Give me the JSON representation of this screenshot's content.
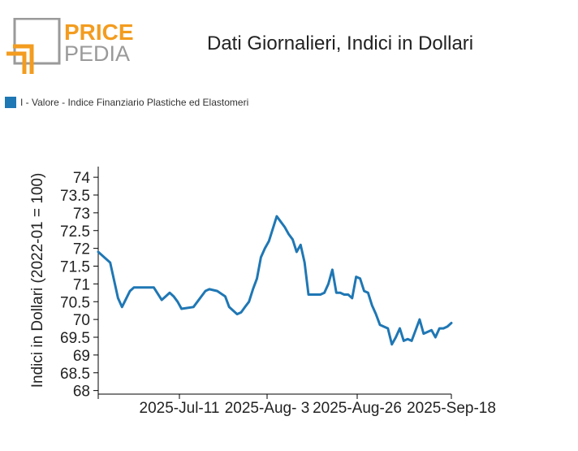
{
  "logo": {
    "word1": "PRICE",
    "word2": "PEDIA"
  },
  "colors": {
    "line": "#1f77b4",
    "orange": "#f39c1f",
    "gray": "#9a9a9a"
  },
  "chart_data": {
    "type": "line",
    "title": "Dati Giornalieri, Indici in Dollari",
    "ylabel": "Indici in Dollari (2022-01 = 100)",
    "xlabel": "",
    "ylim": [
      67.9,
      74.3
    ],
    "yticks": [
      68,
      68.5,
      69,
      69.5,
      70,
      70.5,
      71,
      71.5,
      72,
      72.5,
      73,
      73.5,
      74
    ],
    "xtick_labels": [
      "2025-Jul-11",
      "2025-Aug- 3",
      "2025-Aug-26",
      "2025-Sep-18"
    ],
    "grid": false,
    "legend_position": "top-left",
    "series": [
      {
        "name": "I - Valore - Indice Finanziario Plastiche ed Elastomeri",
        "x": [
          "2025-06-22",
          "2025-06-25",
          "2025-06-27",
          "2025-06-28",
          "2025-06-30",
          "2025-07-01",
          "2025-07-04",
          "2025-07-06",
          "2025-07-08",
          "2025-07-09",
          "2025-07-10",
          "2025-07-11",
          "2025-07-12",
          "2025-07-13",
          "2025-07-16",
          "2025-07-19",
          "2025-07-20",
          "2025-07-22",
          "2025-07-24",
          "2025-07-25",
          "2025-07-27",
          "2025-07-28",
          "2025-07-29",
          "2025-07-30",
          "2025-07-31",
          "2025-08-01",
          "2025-08-02",
          "2025-08-03",
          "2025-08-04",
          "2025-08-06",
          "2025-08-07",
          "2025-08-08",
          "2025-08-09",
          "2025-08-10",
          "2025-08-11",
          "2025-08-12",
          "2025-08-13",
          "2025-08-14",
          "2025-08-15",
          "2025-08-17",
          "2025-08-18",
          "2025-08-19",
          "2025-08-20",
          "2025-08-21",
          "2025-08-22",
          "2025-08-23",
          "2025-08-24",
          "2025-08-25",
          "2025-08-26",
          "2025-08-27",
          "2025-08-28",
          "2025-08-29",
          "2025-08-30",
          "2025-08-31",
          "2025-09-01",
          "2025-09-03",
          "2025-09-04",
          "2025-09-05",
          "2025-09-06",
          "2025-09-07",
          "2025-09-08",
          "2025-09-09",
          "2025-09-11",
          "2025-09-12",
          "2025-09-14",
          "2025-09-15",
          "2025-09-16",
          "2025-09-17",
          "2025-09-18",
          "2025-09-19"
        ],
        "y": [
          71.9,
          71.6,
          70.6,
          70.35,
          70.8,
          70.9,
          70.9,
          70.9,
          70.55,
          70.65,
          70.75,
          70.65,
          70.5,
          70.3,
          70.35,
          70.8,
          70.85,
          70.8,
          70.65,
          70.35,
          70.15,
          70.2,
          70.35,
          70.5,
          70.85,
          71.15,
          71.75,
          72.0,
          72.2,
          72.9,
          72.75,
          72.6,
          72.4,
          72.25,
          71.9,
          72.1,
          71.6,
          70.7,
          70.7,
          70.7,
          70.75,
          71.0,
          71.4,
          70.75,
          70.75,
          70.7,
          70.7,
          70.6,
          71.2,
          71.15,
          70.8,
          70.75,
          70.4,
          70.15,
          69.85,
          69.75,
          69.3,
          69.5,
          69.75,
          69.4,
          69.45,
          69.4,
          70.0,
          69.6,
          69.7,
          69.5,
          69.75,
          69.75,
          69.8,
          69.9
        ]
      }
    ]
  }
}
